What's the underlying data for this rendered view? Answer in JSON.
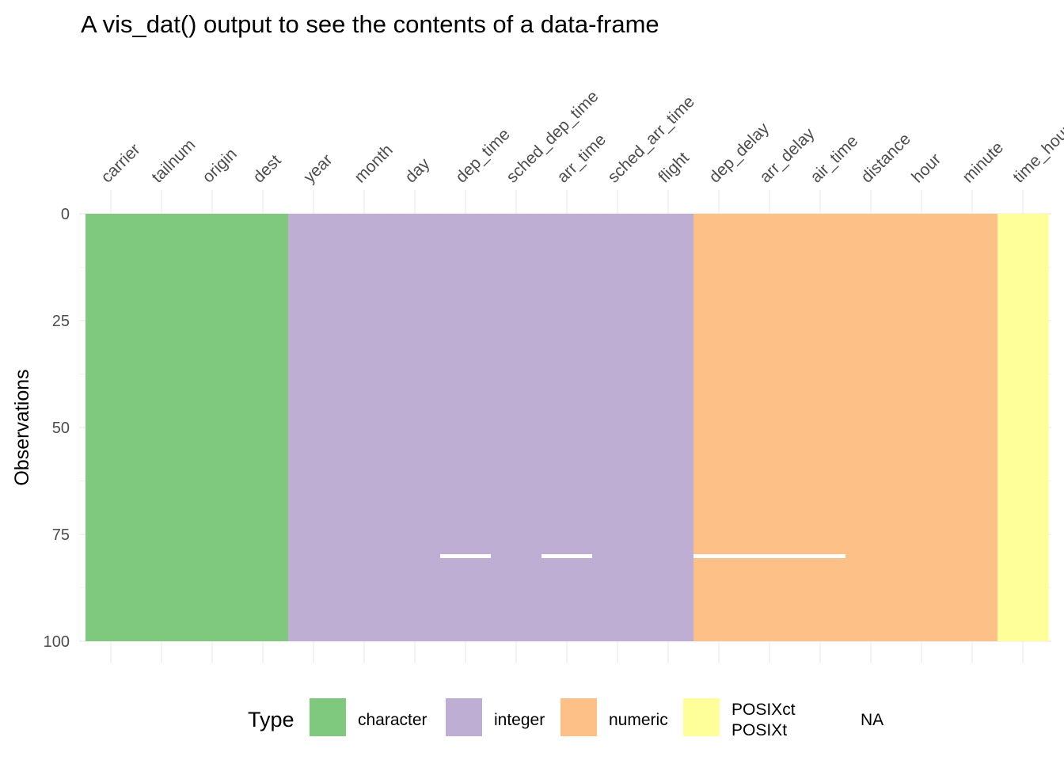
{
  "chart_data": {
    "type": "heatmap",
    "title": "A vis_dat() output to see the contents of a data-frame",
    "ylabel": "Observations",
    "ylim": [
      0,
      100
    ],
    "yticks": [
      0,
      25,
      50,
      75,
      100
    ],
    "columns": [
      "carrier",
      "tailnum",
      "origin",
      "dest",
      "year",
      "month",
      "day",
      "dep_time",
      "sched_dep_time",
      "arr_time",
      "sched_arr_time",
      "flight",
      "dep_delay",
      "arr_delay",
      "air_time",
      "distance",
      "hour",
      "minute",
      "time_hour"
    ],
    "column_types": [
      "character",
      "character",
      "character",
      "character",
      "integer",
      "integer",
      "integer",
      "integer",
      "integer",
      "integer",
      "integer",
      "integer",
      "numeric",
      "numeric",
      "numeric",
      "numeric",
      "numeric",
      "numeric",
      "POSIXct\nPOSIXt"
    ],
    "missing": [
      {
        "column": "dep_time",
        "row": 80
      },
      {
        "column": "arr_time",
        "row": 80
      },
      {
        "column": "dep_delay",
        "row": 80
      },
      {
        "column": "arr_delay",
        "row": 80
      },
      {
        "column": "air_time",
        "row": 80
      }
    ],
    "legend": {
      "title": "Type",
      "position": "bottom",
      "entries": [
        {
          "label": "character",
          "color": "#7fc97f"
        },
        {
          "label": "integer",
          "color": "#beaed4"
        },
        {
          "label": "numeric",
          "color": "#fdc086"
        },
        {
          "label": "POSIXct\nPOSIXt",
          "color": "#ffff99"
        },
        {
          "label": "NA",
          "color": "#ffffff"
        }
      ]
    },
    "grid": true
  }
}
